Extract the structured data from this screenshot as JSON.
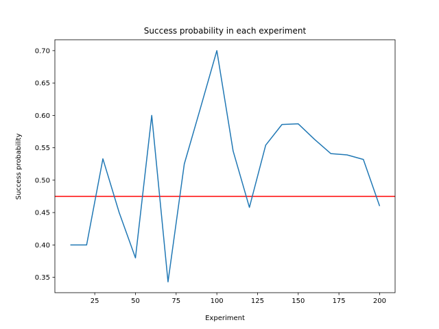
{
  "chart_data": {
    "type": "line",
    "title": "Success probability in each experiment",
    "xlabel": "Experiment",
    "ylabel": "Success probability",
    "xlim": [
      0.5,
      209.5
    ],
    "ylim": [
      0.3263,
      0.7168
    ],
    "grid": false,
    "x_ticks": [
      25,
      50,
      75,
      100,
      125,
      150,
      175,
      200
    ],
    "x_tick_labels": [
      "25",
      "50",
      "75",
      "100",
      "125",
      "150",
      "175",
      "200"
    ],
    "y_ticks": [
      0.35,
      0.4,
      0.45,
      0.5,
      0.55,
      0.6,
      0.65,
      0.7
    ],
    "y_tick_labels": [
      "0.35",
      "0.40",
      "0.45",
      "0.50",
      "0.55",
      "0.60",
      "0.65",
      "0.70"
    ],
    "series": [
      {
        "color": "#1f77b4",
        "x": [
          10,
          20,
          30,
          40,
          50,
          60,
          70,
          80,
          90,
          100,
          110,
          120,
          130,
          140,
          150,
          160,
          170,
          180,
          190,
          200
        ],
        "y": [
          0.4,
          0.4,
          0.533,
          0.45,
          0.38,
          0.6,
          0.343,
          0.525,
          0.612,
          0.7,
          0.545,
          0.458,
          0.554,
          0.586,
          0.587,
          0.563,
          0.541,
          0.539,
          0.532,
          0.46
        ]
      }
    ],
    "reference_line": {
      "orientation": "horizontal",
      "y": 0.475,
      "color": "#ff0000"
    }
  }
}
